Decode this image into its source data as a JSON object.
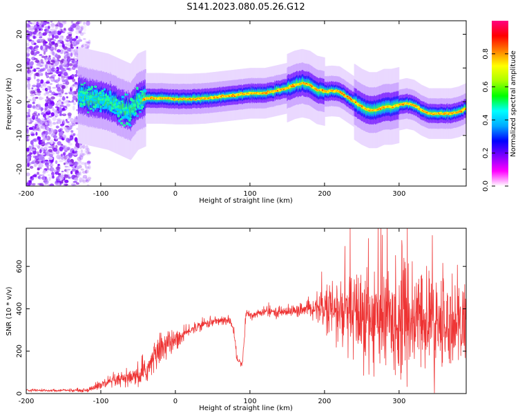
{
  "title": "S141.2023.080.05.26.G12",
  "chart_data": [
    {
      "type": "heatmap",
      "xlabel": "Height of straight line (km)",
      "ylabel": "Frequency (Hz)",
      "xlim": [
        -200,
        390
      ],
      "ylim": [
        -25,
        24
      ],
      "xticks": [
        -200,
        -100,
        0,
        100,
        200,
        300
      ],
      "yticks": [
        -20,
        -10,
        0,
        10,
        20
      ],
      "colorbar": {
        "label": "Normalized spectral amplitude",
        "range": [
          0,
          1
        ],
        "ticks": [
          0.0,
          0.2,
          0.4,
          0.6,
          0.8
        ],
        "colors": [
          "#ffffff",
          "#d8b8ff",
          "#8000ff",
          "#0000ff",
          "#00ffff",
          "#00ff00",
          "#ffff00",
          "#ff0000",
          "#ff0080"
        ]
      },
      "ridge": {
        "x": [
          -130,
          -110,
          -90,
          -80,
          -70,
          -60,
          -50,
          -40,
          -20,
          0,
          20,
          40,
          60,
          80,
          100,
          120,
          140,
          150,
          160,
          170,
          180,
          190,
          200,
          210,
          220,
          230,
          240,
          250,
          260,
          270,
          280,
          290,
          300,
          310,
          320,
          330,
          340,
          350,
          360,
          370,
          380,
          390
        ],
        "y": [
          2,
          1,
          0,
          -1,
          -2,
          -3,
          0,
          1,
          1,
          0.8,
          0.8,
          1,
          1.5,
          2,
          2.5,
          2.5,
          3.5,
          4,
          5,
          5.5,
          5,
          3.5,
          3,
          3.2,
          3,
          1.5,
          0,
          -1.5,
          -2.5,
          -2.5,
          -1.5,
          -1.5,
          -1,
          -0.5,
          -1,
          -2.5,
          -3.5,
          -3.5,
          -3.5,
          -3.5,
          -3,
          -2
        ]
      },
      "noise_region": [
        -200,
        -130
      ]
    },
    {
      "type": "line",
      "xlabel": "Height of straight line (km)",
      "ylabel": "SNR (10 * v/v)",
      "xlim": [
        -200,
        390
      ],
      "ylim": [
        0,
        780
      ],
      "xticks": [
        -200,
        -100,
        0,
        100,
        200,
        300
      ],
      "yticks": [
        0,
        200,
        400,
        600
      ],
      "color": "#ee3333",
      "series": [
        {
          "x": [
            -200,
            -150,
            -120,
            -100,
            -80,
            -60,
            -45,
            -35,
            -25,
            -15,
            -5,
            5,
            20,
            40,
            60,
            75,
            80,
            82,
            85,
            90,
            95,
            100,
            120,
            140,
            160,
            180,
            190,
            200,
            220,
            240,
            260,
            280,
            300,
            320,
            340,
            360,
            380,
            390
          ],
          "y": [
            15,
            15,
            15,
            40,
            60,
            70,
            85,
            130,
            190,
            230,
            240,
            260,
            300,
            330,
            345,
            340,
            260,
            170,
            150,
            145,
            380,
            370,
            385,
            385,
            390,
            395,
            410,
            400,
            380,
            370,
            360,
            350,
            350,
            340,
            340,
            330,
            330,
            335
          ],
          "spread": [
            5,
            5,
            8,
            20,
            30,
            35,
            45,
            60,
            70,
            70,
            50,
            40,
            20,
            20,
            20,
            20,
            20,
            20,
            20,
            20,
            20,
            20,
            20,
            20,
            25,
            30,
            45,
            100,
            150,
            200,
            230,
            230,
            230,
            220,
            210,
            200,
            170,
            150
          ]
        }
      ]
    }
  ]
}
